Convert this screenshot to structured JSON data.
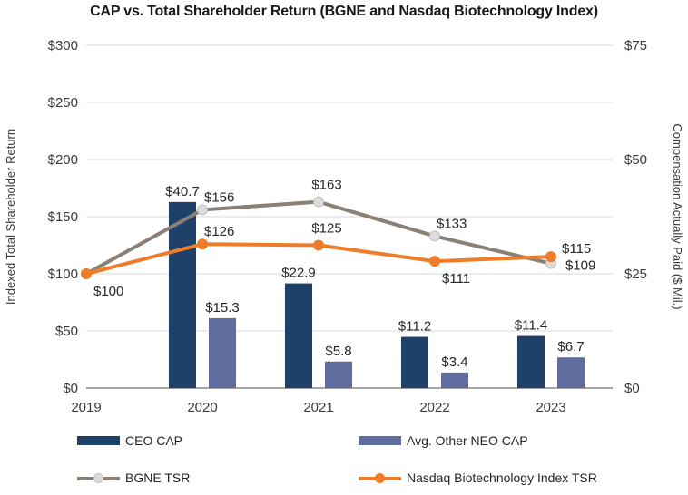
{
  "title": "CAP vs. Total Shareholder Return (BGNE and Nasdaq Biotechnology Index)",
  "chart_data": {
    "type": "combo-bar-line",
    "categories": [
      "2019",
      "2020",
      "2021",
      "2022",
      "2023"
    ],
    "left_axis": {
      "title": "Indexed Total Shareholder Return",
      "tick_labels": [
        "$300",
        "$250",
        "$200",
        "$150",
        "$100",
        "$50",
        "$0"
      ],
      "tick_values": [
        300,
        250,
        200,
        150,
        100,
        50,
        0
      ],
      "range": [
        0,
        300
      ]
    },
    "right_axis": {
      "title": "Compensation Actually Paid ($ Mil.)",
      "tick_labels": [
        "$75",
        "$50",
        "$25",
        "$0"
      ],
      "tick_values": [
        75,
        50,
        25,
        0
      ],
      "range": [
        0,
        75
      ]
    },
    "grid": true,
    "legend_position": "bottom",
    "colors": {
      "gridline": "#d9d9d9",
      "axis_line": "#a6a6a6"
    },
    "bar_series": [
      {
        "name": "CEO CAP",
        "axis": "right",
        "color": "#1f4068",
        "values": [
          null,
          40.7,
          22.9,
          11.2,
          11.4
        ],
        "labels": [
          "",
          "$40.7",
          "$22.9",
          "$11.2",
          "$11.4"
        ]
      },
      {
        "name": "Avg. Other NEO CAP",
        "axis": "right",
        "color": "#5e6d9e",
        "values": [
          null,
          15.3,
          5.8,
          3.4,
          6.7
        ],
        "labels": [
          "",
          "$15.3",
          "$5.8",
          "$3.4",
          "$6.7"
        ]
      }
    ],
    "line_series": [
      {
        "name": "BGNE TSR",
        "axis": "left",
        "color": "#8a8076",
        "marker_fill": "#dcdcdc",
        "marker_stroke": "#c2c2c2",
        "values": [
          100,
          156,
          163,
          133,
          109
        ],
        "labels": [
          {
            "text": "",
            "pos": "none"
          },
          {
            "text": "$156",
            "pos": "above-right"
          },
          {
            "text": "$163",
            "pos": "above"
          },
          {
            "text": "$133",
            "pos": "above-right"
          },
          {
            "text": "$109",
            "pos": "right"
          }
        ]
      },
      {
        "name": "Nasdaq Biotechnology Index TSR",
        "axis": "left",
        "color": "#ee7c28",
        "marker_fill": "#ee7c28",
        "marker_stroke": "#ee7c28",
        "values": [
          100,
          126,
          125,
          111,
          115
        ],
        "labels": [
          {
            "text": "$100",
            "pos": "below"
          },
          {
            "text": "$126",
            "pos": "above-right"
          },
          {
            "text": "$125",
            "pos": "above"
          },
          {
            "text": "$111",
            "pos": "below"
          },
          {
            "text": "$115",
            "pos": "right-up"
          }
        ]
      }
    ]
  },
  "legend": {
    "items": [
      {
        "label": "CEO CAP",
        "type": "bar",
        "color": "#1f4068"
      },
      {
        "label": "Avg. Other NEO CAP",
        "type": "bar",
        "color": "#5e6d9e"
      },
      {
        "label": "BGNE TSR",
        "type": "line",
        "color": "#8a8076",
        "marker_fill": "#dcdcdc",
        "marker_stroke": "#c2c2c2"
      },
      {
        "label": "Nasdaq Biotechnology Index TSR",
        "type": "line",
        "color": "#ee7c28",
        "marker_fill": "#ee7c28"
      }
    ]
  }
}
